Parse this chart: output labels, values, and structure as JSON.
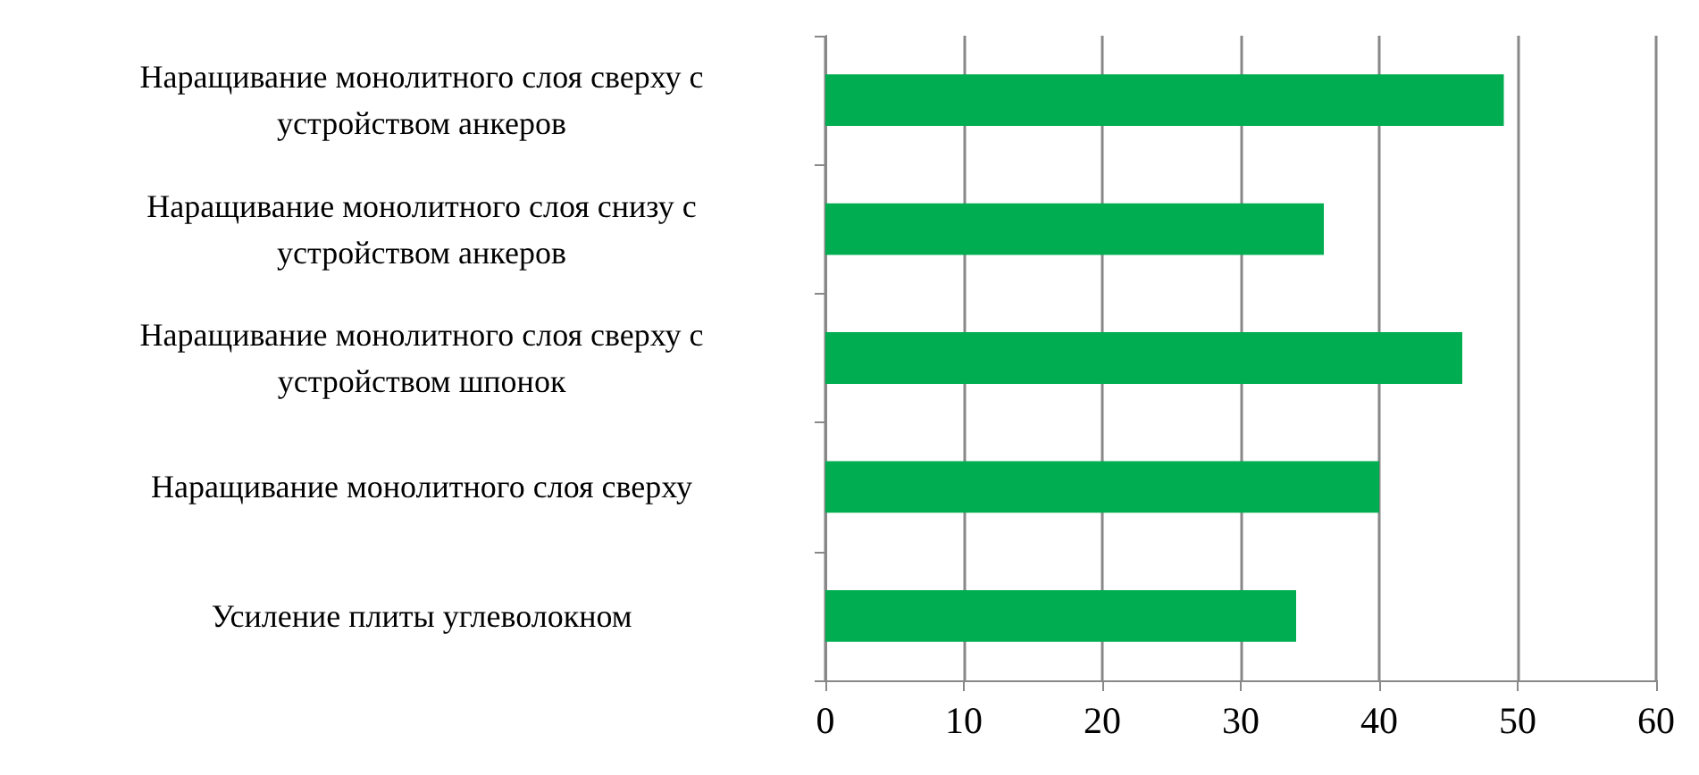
{
  "chart_data": {
    "type": "bar",
    "orientation": "horizontal",
    "categories": [
      "Наращивание монолитного слоя сверху с устройством анкеров",
      "Наращивание монолитного слоя снизу с устройством анкеров",
      "Наращивание монолитного слоя сверху с устройством шпонок",
      "Наращивание монолитного слоя сверху",
      "Усиление плиты углеволокном"
    ],
    "values": [
      49,
      36,
      46,
      40,
      34
    ],
    "color": "#00ad50",
    "xlim": [
      0,
      60
    ],
    "xticks": [
      0,
      10,
      20,
      30,
      40,
      50,
      60
    ],
    "grid": "x"
  }
}
